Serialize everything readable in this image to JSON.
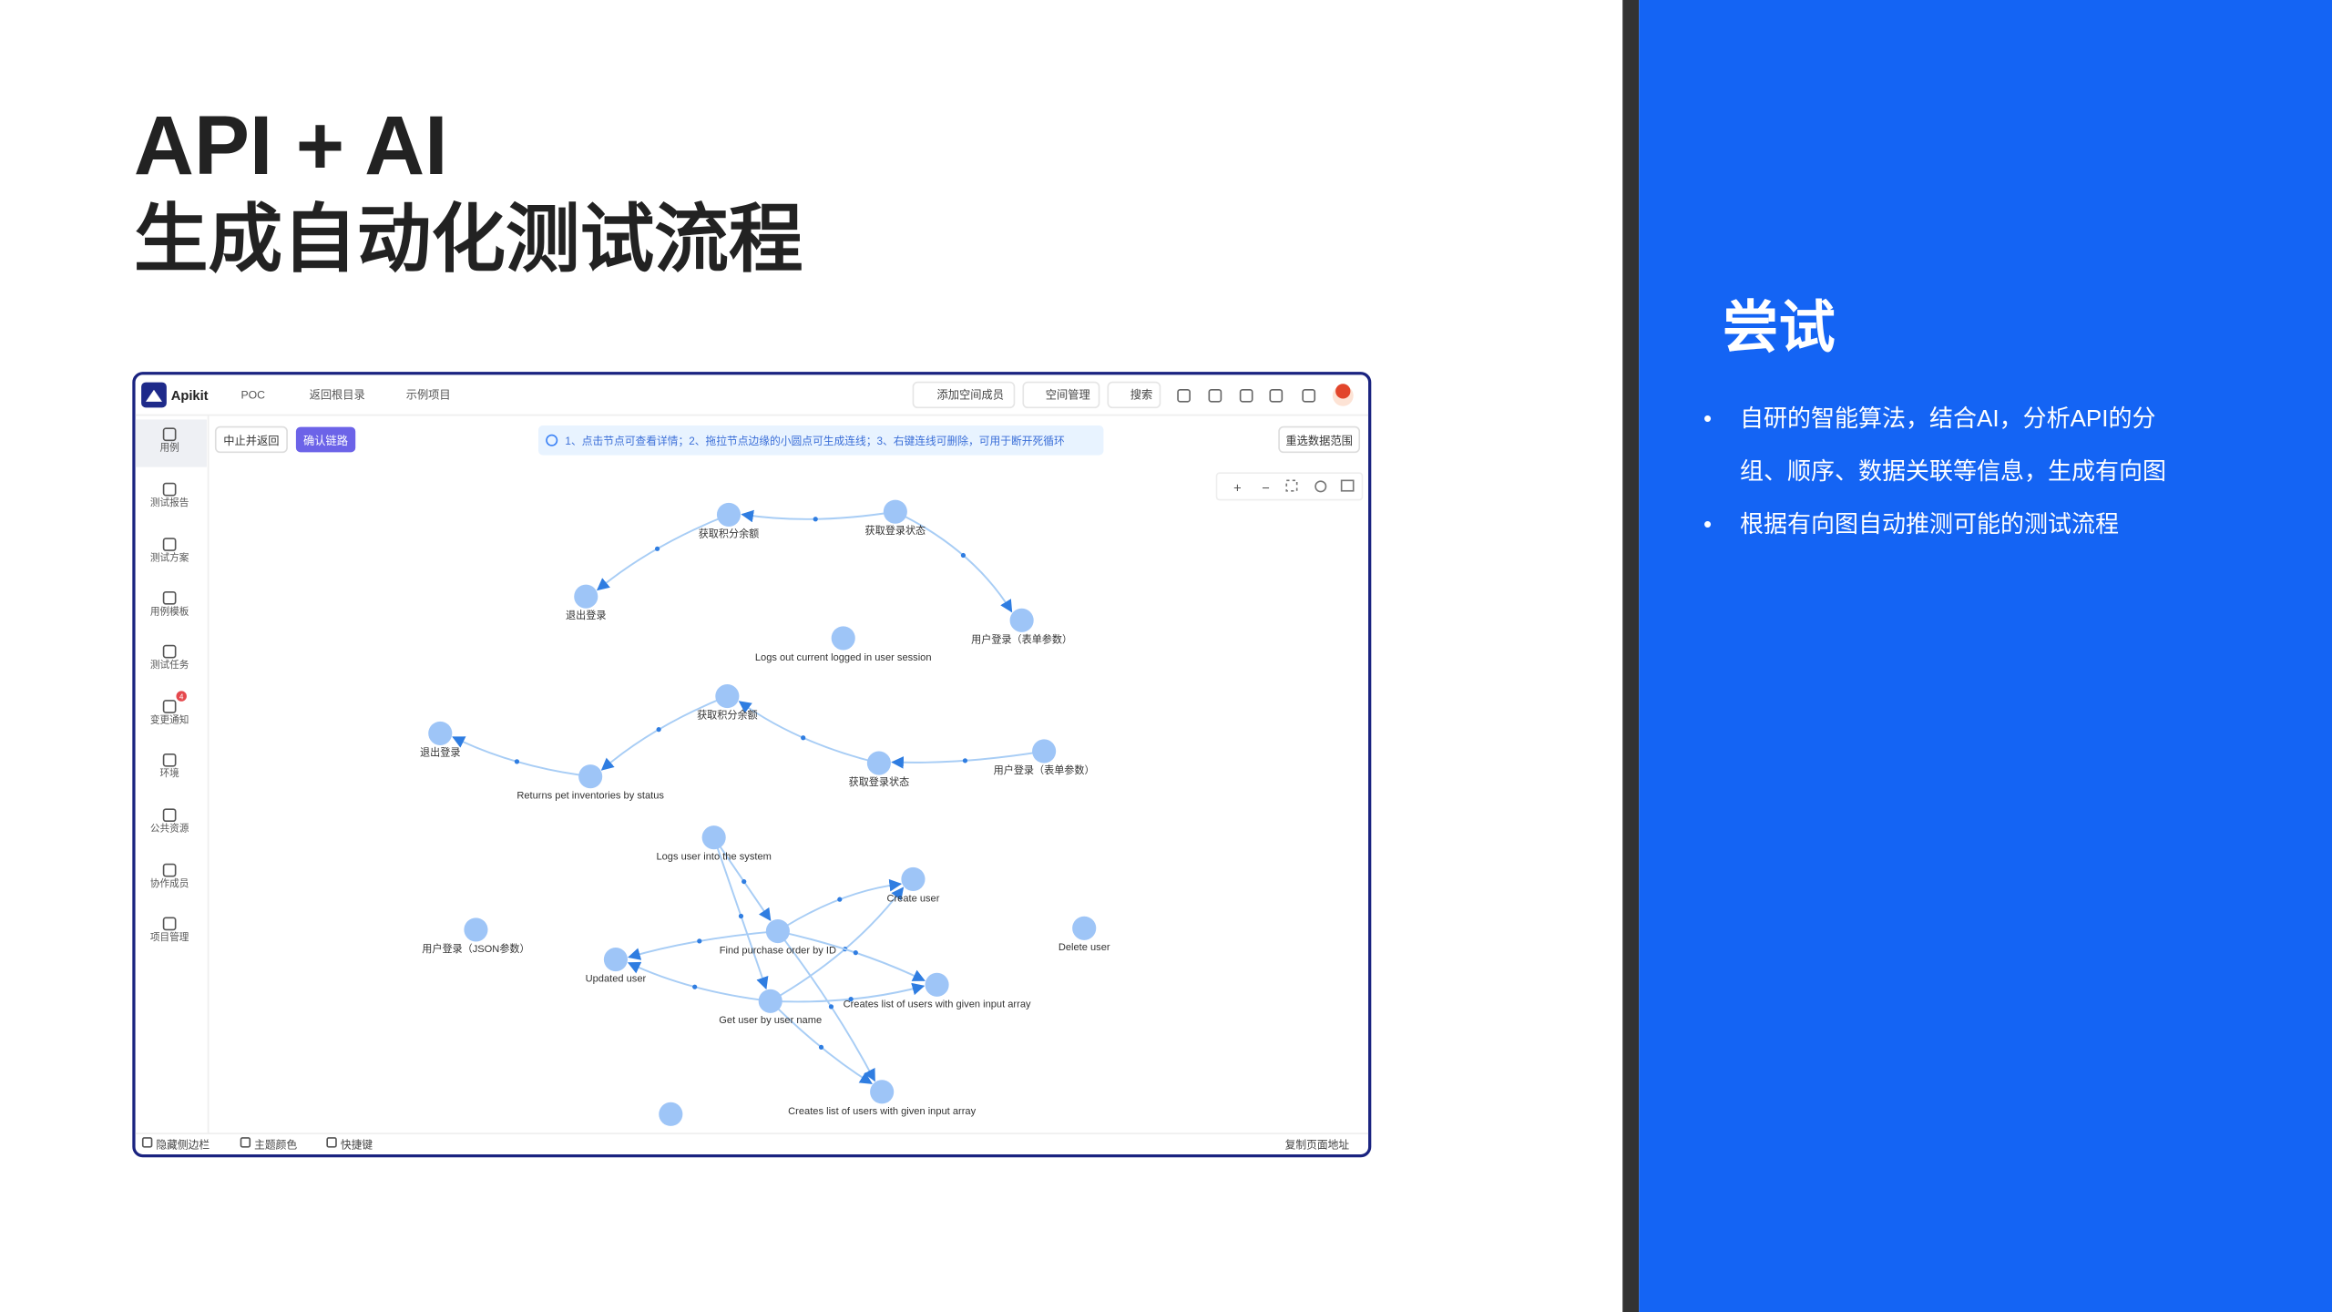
{
  "slide": {
    "title_line1": "API + AI",
    "title_line2": "生成自动化测试流程"
  },
  "panel": {
    "title": "尝试",
    "bullets": [
      "自研的智能算法，结合AI，分析API的分组、顺序、数据关联等信息，生成有向图",
      "根据有向图自动推测可能的测试流程"
    ]
  },
  "app": {
    "logo": "Apikit",
    "workspace": "POC",
    "back": "返回根目录",
    "project": "示例项目",
    "top_actions": [
      "添加空间成员",
      "空间管理",
      "搜索"
    ],
    "sidebar": [
      "用例",
      "测试报告",
      "测试方案",
      "用例模板",
      "测试任务",
      "变更通知",
      "环境",
      "公共资源",
      "协作成员",
      "项目管理"
    ],
    "badge": "4",
    "stop_button": "中止并返回",
    "confirm_button": "确认链路",
    "info": "1、点击节点可查看详情；2、拖拉节点边缘的小圆点可生成连线；3、右键连线可删除，可用于断开死循环",
    "reselect": "重选数据范围",
    "nodes": [
      "获取积分余额",
      "获取登录状态",
      "退出登录",
      "用户登录（表单参数）",
      "Logs out current logged in user session",
      "获取积分余额",
      "退出登录",
      "用户登录（表单参数）",
      "获取登录状态",
      "Returns pet inventories by status",
      "Logs user into the system",
      "Create user",
      "用户登录（JSON参数）",
      "Delete user",
      "Find purchase order by ID",
      "Updated user",
      "Creates list of users with given input array",
      "Get user by user name",
      "Creates list of users with given input array"
    ],
    "footer_left": [
      "隐藏侧边栏",
      "主题颜色",
      "快捷键"
    ],
    "footer_right": "复制页面地址"
  }
}
